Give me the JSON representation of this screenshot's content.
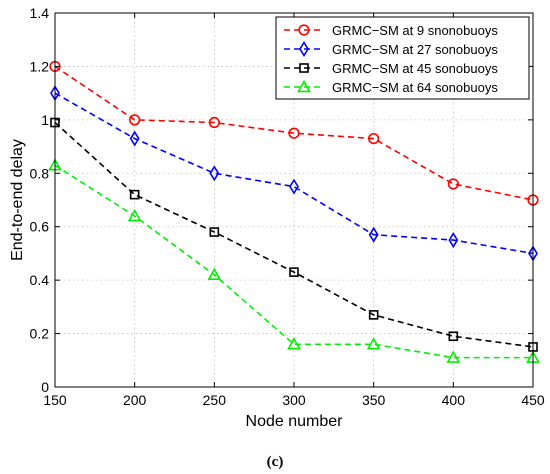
{
  "chart_data": {
    "type": "line",
    "title": "",
    "xlabel": "Node number",
    "ylabel": "End-to-end delay",
    "caption": "(c)",
    "x": [
      150,
      200,
      250,
      300,
      350,
      400,
      450
    ],
    "xlim": [
      150,
      450
    ],
    "ylim": [
      0,
      1.4
    ],
    "xticks": [
      "150",
      "200",
      "250",
      "300",
      "350",
      "400",
      "450"
    ],
    "yticks": [
      "0",
      "0.2",
      "0.4",
      "0.6",
      "0.8",
      "1",
      "1.2",
      "1.4"
    ],
    "grid": true,
    "legend_position": "top-right",
    "series": [
      {
        "name": "GRMC−SM at 9 snonobuoys",
        "color": "#ff0000",
        "marker": "circle",
        "values": [
          1.2,
          1.0,
          0.99,
          0.95,
          0.93,
          0.76,
          0.7
        ]
      },
      {
        "name": "GRMC−SM at 27 sonobuoys",
        "color": "#0000ff",
        "marker": "diamond",
        "values": [
          1.1,
          0.93,
          0.8,
          0.75,
          0.57,
          0.55,
          0.5
        ]
      },
      {
        "name": "GRMC−SM at 45 sonobuoys",
        "color": "#000000",
        "marker": "square",
        "values": [
          0.99,
          0.72,
          0.58,
          0.43,
          0.27,
          0.19,
          0.15
        ]
      },
      {
        "name": "GRMC−SM at 64 sonobuoys",
        "color": "#00ee00",
        "marker": "triangle",
        "values": [
          0.83,
          0.64,
          0.42,
          0.16,
          0.16,
          0.11,
          0.11
        ]
      }
    ]
  }
}
